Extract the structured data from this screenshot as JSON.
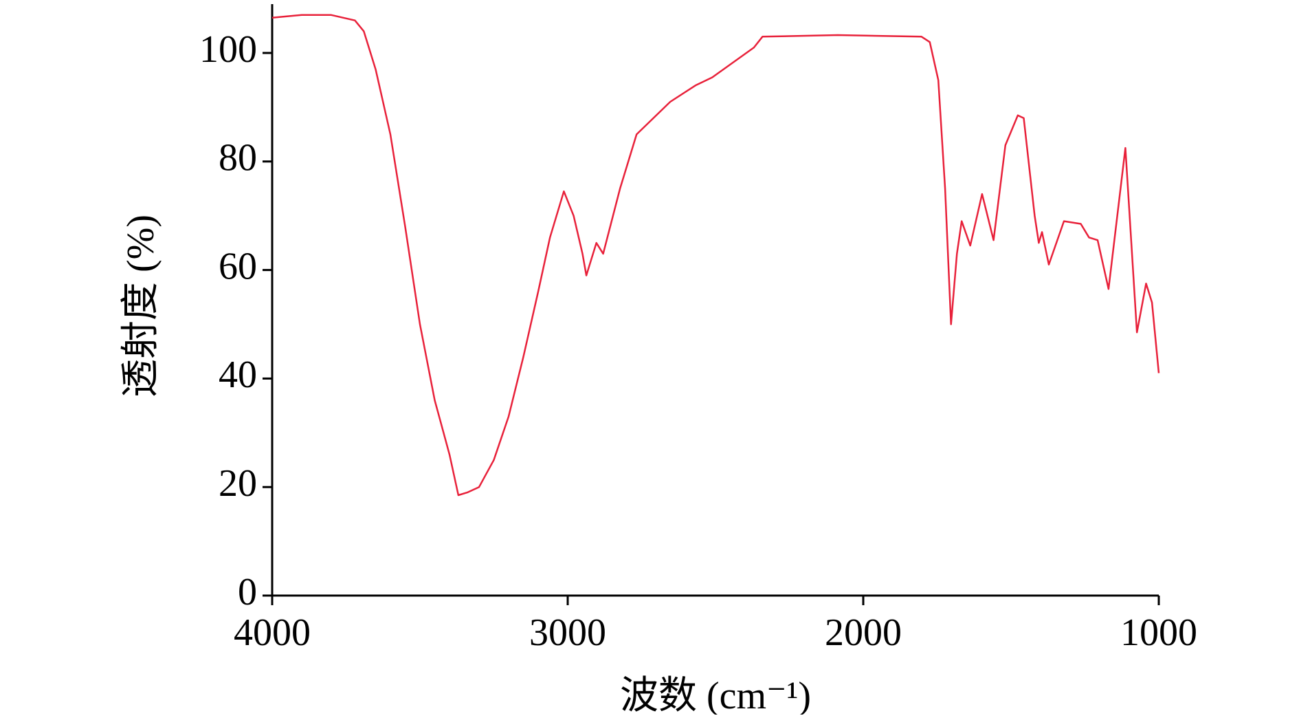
{
  "chart_data": {
    "type": "line",
    "xlabel": "波数 (cm⁻¹)",
    "ylabel": "透射度 (%)",
    "xlim": [
      4000,
      1000
    ],
    "xticks": [
      4000,
      3000,
      2000,
      1000
    ],
    "ylim": [
      0,
      109
    ],
    "yticks": [
      0,
      20,
      40,
      60,
      80,
      100
    ],
    "series": [
      {
        "color": "#e8213a",
        "x": [
          4000,
          3900,
          3800,
          3720,
          3690,
          3650,
          3600,
          3550,
          3500,
          3450,
          3420,
          3400,
          3370,
          3340,
          3300,
          3250,
          3200,
          3150,
          3100,
          3060,
          3013,
          2980,
          2950,
          2937,
          2903,
          2880,
          2823,
          2767,
          2653,
          2568,
          2511,
          2370,
          2341,
          2086,
          1803,
          1775,
          1746,
          1723,
          1703,
          1683,
          1667,
          1638,
          1598,
          1559,
          1519,
          1477,
          1457,
          1420,
          1406,
          1395,
          1372,
          1321,
          1264,
          1236,
          1207,
          1170,
          1113,
          1074,
          1043,
          1023,
          1000
        ],
        "values": [
          106.5,
          107,
          107,
          106,
          104,
          97,
          85,
          68,
          50,
          36,
          30,
          26,
          18.5,
          19,
          20,
          25,
          33,
          44,
          56,
          66,
          74.5,
          70,
          63,
          59,
          65,
          63,
          75,
          85,
          91,
          94,
          95.5,
          101,
          103,
          103.3,
          103,
          102,
          95,
          75,
          50,
          63,
          69,
          64.5,
          74,
          65.5,
          83,
          88.5,
          88,
          70,
          65,
          67,
          61,
          69,
          68.5,
          66,
          65.5,
          56.5,
          82.5,
          48.5,
          57.5,
          54,
          41
        ]
      }
    ]
  }
}
